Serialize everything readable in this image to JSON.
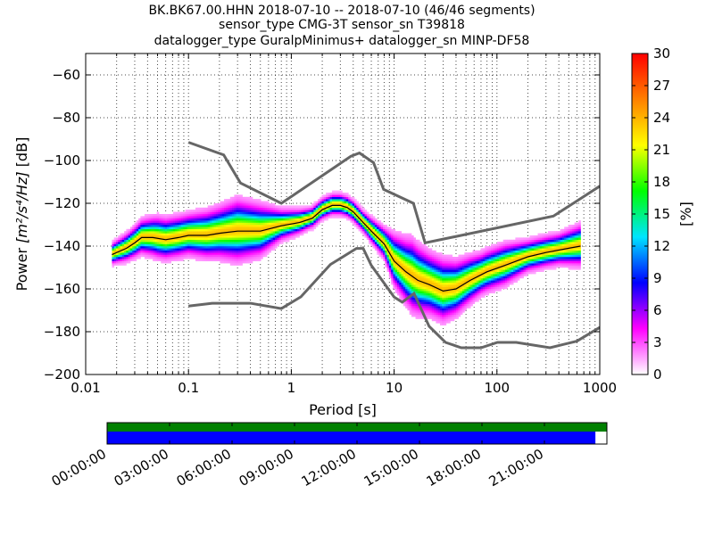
{
  "chart_data": {
    "type": "heatmap",
    "title_lines": [
      "BK.BK67.00.HHN   2018-07-10 -- 2018-07-10  (46/46 segments)",
      "sensor_type CMG-3T sensor_sn T39818",
      "datalogger_type GuralpMinimus+ datalogger_sn MINP-DF58"
    ],
    "xlabel": "Period [s]",
    "ylabel_prefix": "Power ",
    "ylabel_units": "[m²/s⁴/Hz]",
    "ylabel_suffix": " [dB]",
    "x_scale": "log",
    "xlim": [
      0.01,
      1000
    ],
    "ylim": [
      -200,
      -50
    ],
    "x_ticks": [
      {
        "value": 0.01,
        "label": "0.01"
      },
      {
        "value": 0.1,
        "label": "0.1"
      },
      {
        "value": 1,
        "label": "1"
      },
      {
        "value": 10,
        "label": "10"
      },
      {
        "value": 100,
        "label": "100"
      },
      {
        "value": 1000,
        "label": "1000"
      }
    ],
    "y_ticks": [
      {
        "value": -60,
        "label": "−60"
      },
      {
        "value": -80,
        "label": "−80"
      },
      {
        "value": -100,
        "label": "−100"
      },
      {
        "value": -120,
        "label": "−120"
      },
      {
        "value": -140,
        "label": "−140"
      },
      {
        "value": -160,
        "label": "−160"
      },
      {
        "value": -180,
        "label": "−180"
      },
      {
        "value": -200,
        "label": "−200"
      }
    ],
    "grid": "dotted",
    "colorbar": {
      "label": "[%]",
      "range": [
        0,
        30
      ],
      "ticks": [
        "0",
        "3",
        "6",
        "9",
        "12",
        "15",
        "18",
        "21",
        "24",
        "27",
        "30"
      ],
      "colors": [
        "#ffffff",
        "#ff00ff",
        "#0000ff",
        "#00e5ff",
        "#00ff00",
        "#ffff00",
        "#ff8000",
        "#ff0000"
      ]
    },
    "noise_model_high": [
      [
        0.1,
        -91.5
      ],
      [
        0.22,
        -97.4
      ],
      [
        0.32,
        -110.5
      ],
      [
        0.8,
        -120
      ],
      [
        3.8,
        -98
      ],
      [
        4.6,
        -96.5
      ],
      [
        6.3,
        -101
      ],
      [
        7.9,
        -113.5
      ],
      [
        15.4,
        -120
      ],
      [
        20,
        -138.5
      ],
      [
        354,
        -126
      ],
      [
        1000,
        -112
      ]
    ],
    "noise_model_low": [
      [
        0.1,
        -168
      ],
      [
        0.17,
        -166.7
      ],
      [
        0.4,
        -166.7
      ],
      [
        0.8,
        -169.2
      ],
      [
        1.24,
        -163.7
      ],
      [
        2.4,
        -148.6
      ],
      [
        4.3,
        -141.1
      ],
      [
        5,
        -141.1
      ],
      [
        6,
        -149
      ],
      [
        10,
        -163.8
      ],
      [
        12,
        -166.2
      ],
      [
        15.6,
        -162.1
      ],
      [
        21.9,
        -177.5
      ],
      [
        31.6,
        -185
      ],
      [
        45,
        -187.5
      ],
      [
        70,
        -187.5
      ],
      [
        101,
        -185
      ],
      [
        154,
        -185
      ],
      [
        328,
        -187.5
      ],
      [
        600,
        -184.4
      ],
      [
        1000,
        -178
      ]
    ],
    "psd_median": [
      [
        0.018,
        -144
      ],
      [
        0.025,
        -141
      ],
      [
        0.03,
        -138.5
      ],
      [
        0.035,
        -136
      ],
      [
        0.045,
        -136
      ],
      [
        0.06,
        -137
      ],
      [
        0.08,
        -136
      ],
      [
        0.1,
        -135
      ],
      [
        0.15,
        -135
      ],
      [
        0.2,
        -134
      ],
      [
        0.3,
        -133
      ],
      [
        0.5,
        -133
      ],
      [
        0.8,
        -130.5
      ],
      [
        1.2,
        -129
      ],
      [
        1.6,
        -127
      ],
      [
        2,
        -123
      ],
      [
        2.5,
        -121
      ],
      [
        3,
        -121
      ],
      [
        3.5,
        -122
      ],
      [
        4,
        -124
      ],
      [
        5,
        -129
      ],
      [
        6,
        -133
      ],
      [
        8,
        -139
      ],
      [
        10,
        -147
      ],
      [
        13,
        -152
      ],
      [
        17,
        -156
      ],
      [
        22,
        -158
      ],
      [
        30,
        -161
      ],
      [
        40,
        -160
      ],
      [
        55,
        -156
      ],
      [
        80,
        -152
      ],
      [
        120,
        -149
      ],
      [
        200,
        -145
      ],
      [
        300,
        -143
      ],
      [
        500,
        -141
      ],
      [
        650,
        -140
      ]
    ],
    "psd_spread": [
      [
        0.018,
        2
      ],
      [
        0.03,
        3
      ],
      [
        0.05,
        4
      ],
      [
        0.1,
        4
      ],
      [
        0.2,
        5
      ],
      [
        0.3,
        6
      ],
      [
        0.5,
        5
      ],
      [
        0.8,
        3
      ],
      [
        1.5,
        2
      ],
      [
        3,
        2
      ],
      [
        5,
        2
      ],
      [
        8,
        3
      ],
      [
        10,
        5
      ],
      [
        15,
        7
      ],
      [
        22,
        6
      ],
      [
        30,
        6
      ],
      [
        45,
        5
      ],
      [
        70,
        4
      ],
      [
        120,
        4
      ],
      [
        200,
        3
      ],
      [
        400,
        3
      ],
      [
        650,
        4
      ]
    ],
    "time_axis_labels": [
      "00:00:00",
      "03:00:00",
      "06:00:00",
      "09:00:00",
      "12:00:00",
      "15:00:00",
      "18:00:00",
      "21:00:00"
    ],
    "data_coverage_fraction": 0.977,
    "coverage_colors": {
      "top_bar": "#008000",
      "bottom_bar": "#0000ff"
    }
  }
}
